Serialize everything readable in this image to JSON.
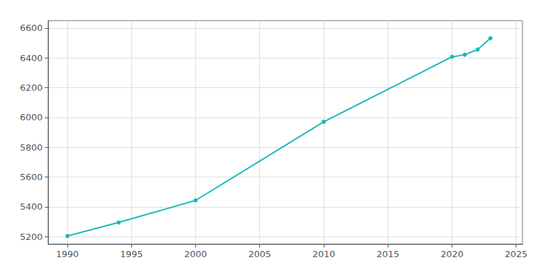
{
  "chart_data": {
    "type": "line",
    "x": [
      1990,
      1994,
      2000,
      2010,
      2020,
      2021,
      2022,
      2023
    ],
    "values": [
      5204,
      5295,
      5443,
      5971,
      6407,
      6421,
      6456,
      6532
    ],
    "color": "#17b8b8",
    "marker": "circle",
    "xlim": [
      1988.5,
      2025.5
    ],
    "ylim": [
      5150,
      6650
    ],
    "xticks": [
      1990,
      1995,
      2000,
      2005,
      2010,
      2015,
      2020,
      2025
    ],
    "yticks": [
      5200,
      5400,
      5600,
      5800,
      6000,
      6200,
      6400,
      6600
    ],
    "grid": true
  }
}
